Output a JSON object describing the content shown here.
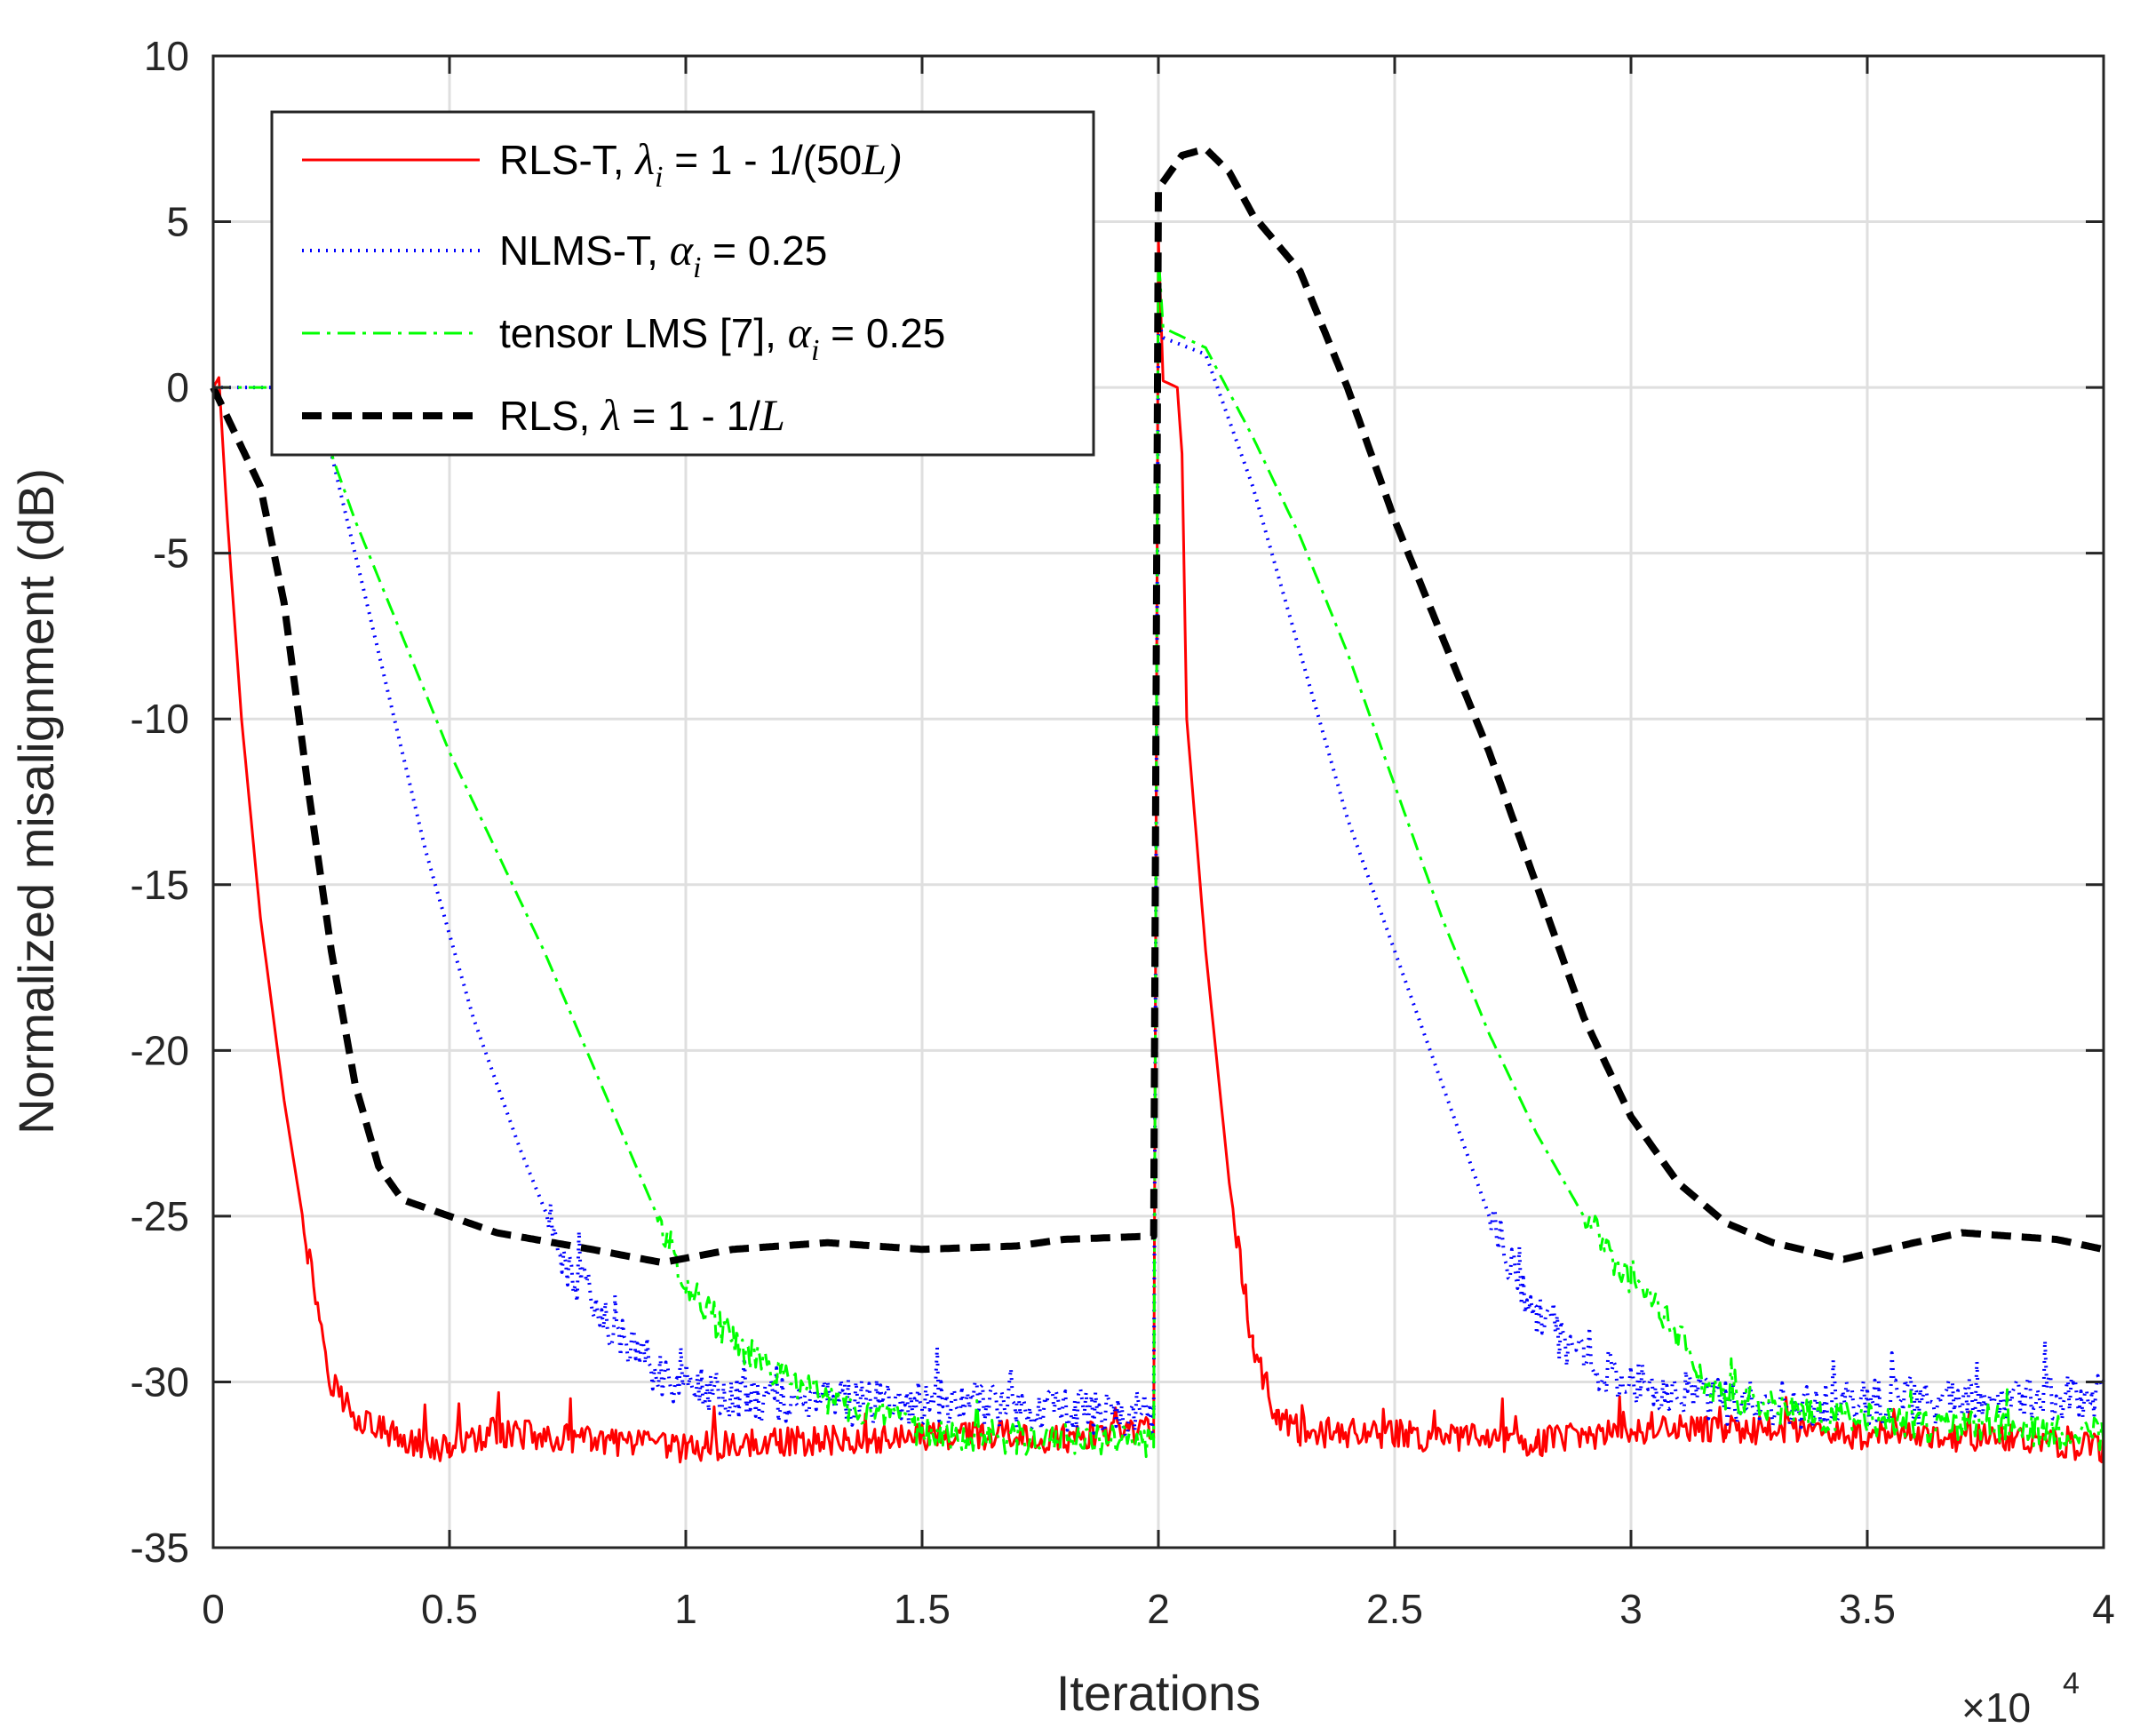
{
  "chart_data": {
    "type": "line",
    "xlabel": "Iterations",
    "ylabel": "Normalized misalignment (dB)",
    "x_multiplier": {
      "base": "×10",
      "exponent": "4"
    },
    "xlim": [
      0,
      4
    ],
    "ylim": [
      -35,
      10
    ],
    "xticks": [
      0,
      0.5,
      1,
      1.5,
      2,
      2.5,
      3,
      3.5,
      4
    ],
    "xtick_labels": [
      "0",
      "0.5",
      "1",
      "1.5",
      "2",
      "2.5",
      "3",
      "3.5",
      "4"
    ],
    "yticks": [
      10,
      5,
      0,
      -5,
      -10,
      -15,
      -20,
      -25,
      -30,
      -35
    ],
    "ytick_labels": [
      "10",
      "5",
      "0",
      "-5",
      "-10",
      "-15",
      "-20",
      "-25",
      "-30",
      "-35"
    ],
    "grid": true,
    "legend_position": "top-left",
    "series": [
      {
        "name": "RLS-T",
        "color": "#ff0000",
        "style": "solid",
        "legend": {
          "prefix": "RLS-T, ",
          "symbol": "λ",
          "sub": "i",
          "suffix": " = 1 - 1/(50",
          "italic_tail": "L",
          "close": ")"
        },
        "noise": 0.45,
        "points": [
          [
            0,
            0
          ],
          [
            0.012,
            0.3
          ],
          [
            0.03,
            -4
          ],
          [
            0.06,
            -10
          ],
          [
            0.1,
            -16
          ],
          [
            0.15,
            -21.5
          ],
          [
            0.2,
            -26
          ],
          [
            0.25,
            -30
          ],
          [
            0.3,
            -31
          ],
          [
            0.4,
            -31.8
          ],
          [
            0.5,
            -32
          ],
          [
            0.6,
            -31.5
          ],
          [
            0.8,
            -31.8
          ],
          [
            1.0,
            -32
          ],
          [
            1.2,
            -31.8
          ],
          [
            1.4,
            -31.7
          ],
          [
            1.6,
            -31.6
          ],
          [
            1.8,
            -31.7
          ],
          [
            1.99,
            -31.5
          ],
          [
            2.0,
            4.5
          ],
          [
            2.01,
            0.2
          ],
          [
            2.04,
            0
          ],
          [
            2.05,
            -2
          ],
          [
            2.06,
            -10
          ],
          [
            2.1,
            -17
          ],
          [
            2.15,
            -24
          ],
          [
            2.2,
            -29
          ],
          [
            2.25,
            -31
          ],
          [
            2.3,
            -31.5
          ],
          [
            2.5,
            -31.6
          ],
          [
            2.8,
            -31.8
          ],
          [
            3.0,
            -31.5
          ],
          [
            3.2,
            -31.4
          ],
          [
            3.5,
            -31.6
          ],
          [
            3.8,
            -31.7
          ],
          [
            4.0,
            -32
          ]
        ]
      },
      {
        "name": "NLMS-T",
        "color": "#0000ff",
        "style": "dotted",
        "legend": {
          "prefix": "NLMS-T, ",
          "symbol": "α",
          "sub": "i",
          "suffix": " = 0.25",
          "italic_tail": "",
          "close": ""
        },
        "noise": 0.7,
        "points": [
          [
            0,
            0
          ],
          [
            0.2,
            0
          ],
          [
            0.25,
            -2
          ],
          [
            0.35,
            -8
          ],
          [
            0.45,
            -14
          ],
          [
            0.55,
            -19
          ],
          [
            0.65,
            -23
          ],
          [
            0.75,
            -26.5
          ],
          [
            0.85,
            -28.5
          ],
          [
            0.95,
            -29.8
          ],
          [
            1.1,
            -30.5
          ],
          [
            1.3,
            -30.6
          ],
          [
            1.5,
            -30.6
          ],
          [
            1.7,
            -30.7
          ],
          [
            1.99,
            -31
          ],
          [
            2.0,
            2
          ],
          [
            2.01,
            1.5
          ],
          [
            2.1,
            1
          ],
          [
            2.2,
            -3
          ],
          [
            2.3,
            -8
          ],
          [
            2.4,
            -13
          ],
          [
            2.5,
            -17
          ],
          [
            2.6,
            -21
          ],
          [
            2.7,
            -25
          ],
          [
            2.8,
            -28
          ],
          [
            2.9,
            -29.3
          ],
          [
            3.0,
            -30
          ],
          [
            3.2,
            -30.6
          ],
          [
            3.4,
            -30.7
          ],
          [
            3.6,
            -30.6
          ],
          [
            3.8,
            -30.5
          ],
          [
            4.0,
            -30.5
          ]
        ]
      },
      {
        "name": "tensor LMS [7]",
        "color": "#00ff00",
        "style": "dashdot",
        "legend": {
          "prefix": "tensor LMS [7], ",
          "symbol": "α",
          "sub": "i",
          "suffix": " = 0.25",
          "italic_tail": "",
          "close": ""
        },
        "noise": 0.5,
        "points": [
          [
            0,
            0
          ],
          [
            0.2,
            0
          ],
          [
            0.3,
            -4
          ],
          [
            0.5,
            -11
          ],
          [
            0.7,
            -17
          ],
          [
            0.85,
            -22
          ],
          [
            1.0,
            -27
          ],
          [
            1.1,
            -28.8
          ],
          [
            1.2,
            -29.8
          ],
          [
            1.3,
            -30.5
          ],
          [
            1.5,
            -31.5
          ],
          [
            1.7,
            -31.7
          ],
          [
            1.99,
            -31.8
          ],
          [
            2.0,
            4
          ],
          [
            2.01,
            1.8
          ],
          [
            2.1,
            1.2
          ],
          [
            2.2,
            -1.5
          ],
          [
            2.3,
            -4.5
          ],
          [
            2.4,
            -8
          ],
          [
            2.5,
            -12
          ],
          [
            2.6,
            -16
          ],
          [
            2.7,
            -19.5
          ],
          [
            2.8,
            -22.5
          ],
          [
            2.9,
            -25
          ],
          [
            3.0,
            -27
          ],
          [
            3.1,
            -28.5
          ],
          [
            3.15,
            -30
          ],
          [
            3.2,
            -30.5
          ],
          [
            3.4,
            -31
          ],
          [
            3.6,
            -31.3
          ],
          [
            3.8,
            -31.4
          ],
          [
            4.0,
            -31.6
          ]
        ]
      },
      {
        "name": "RLS",
        "color": "#000000",
        "style": "dashed",
        "legend": {
          "prefix": "RLS, ",
          "symbol": "λ",
          "sub": "",
          "suffix": " = 1 - 1/",
          "italic_tail": "L",
          "close": ""
        },
        "noise": 0,
        "points": [
          [
            0,
            0
          ],
          [
            0.05,
            -1.5
          ],
          [
            0.1,
            -3
          ],
          [
            0.15,
            -6.5
          ],
          [
            0.2,
            -12
          ],
          [
            0.25,
            -17
          ],
          [
            0.3,
            -21
          ],
          [
            0.35,
            -23.5
          ],
          [
            0.4,
            -24.5
          ],
          [
            0.5,
            -25
          ],
          [
            0.6,
            -25.5
          ],
          [
            0.8,
            -26
          ],
          [
            0.95,
            -26.4
          ],
          [
            1.1,
            -26
          ],
          [
            1.3,
            -25.8
          ],
          [
            1.5,
            -26
          ],
          [
            1.7,
            -25.9
          ],
          [
            1.8,
            -25.7
          ],
          [
            1.99,
            -25.6
          ],
          [
            2.0,
            6
          ],
          [
            2.05,
            7
          ],
          [
            2.1,
            7.2
          ],
          [
            2.15,
            6.5
          ],
          [
            2.2,
            5.2
          ],
          [
            2.3,
            3.5
          ],
          [
            2.4,
            0
          ],
          [
            2.5,
            -4
          ],
          [
            2.6,
            -7.5
          ],
          [
            2.7,
            -11
          ],
          [
            2.8,
            -15
          ],
          [
            2.9,
            -19
          ],
          [
            3.0,
            -22
          ],
          [
            3.1,
            -24
          ],
          [
            3.2,
            -25.2
          ],
          [
            3.3,
            -25.8
          ],
          [
            3.45,
            -26.3
          ],
          [
            3.6,
            -25.8
          ],
          [
            3.7,
            -25.5
          ],
          [
            3.8,
            -25.6
          ],
          [
            3.9,
            -25.7
          ],
          [
            4.0,
            -26
          ]
        ]
      }
    ]
  }
}
